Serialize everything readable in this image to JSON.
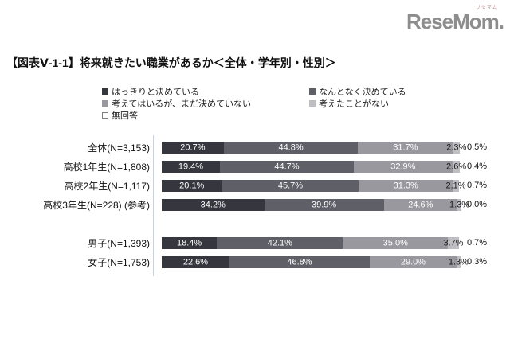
{
  "logo": {
    "text": "ReseMom.",
    "ruby": "リセマム"
  },
  "title": "【図表Ⅴ-1-1】将来就きたい職業があるか＜全体・学年別・性別＞",
  "legend": {
    "items": [
      {
        "label": "はっきりと決めている",
        "color": "#36363e"
      },
      {
        "label": "なんとなく決めている",
        "color": "#5f5f68"
      },
      {
        "label": "考えてはいるが、まだ決めていない",
        "color": "#98989e"
      },
      {
        "label": "考えたことがない",
        "color": "#bfbfc3"
      },
      {
        "label": "無回答",
        "color": "#ffffff",
        "border": "#7f7f7f"
      }
    ]
  },
  "chart_data": {
    "type": "bar",
    "stacked": true,
    "orientation": "horizontal",
    "unit": "%",
    "xlim": [
      0,
      100
    ],
    "grid": false,
    "value_labels": "inside, last series outside right",
    "categories": [
      "全体(N=3,153)",
      "高校1年生(N=1,808)",
      "高校2年生(N=1,117)",
      "高校3年生(N=228) (参考)",
      "男子(N=1,393)",
      "女子(N=1,753)"
    ],
    "series": [
      {
        "name": "はっきりと決めている",
        "values": [
          20.7,
          19.4,
          20.1,
          34.2,
          18.4,
          22.6
        ]
      },
      {
        "name": "なんとなく決めている",
        "values": [
          44.8,
          44.7,
          45.7,
          39.9,
          42.1,
          46.8
        ]
      },
      {
        "name": "考えてはいるが、まだ決めていない",
        "values": [
          31.7,
          32.9,
          31.3,
          24.6,
          35.0,
          29.0
        ]
      },
      {
        "name": "考えたことがない",
        "values": [
          2.3,
          2.6,
          2.1,
          1.3,
          3.7,
          1.3
        ]
      },
      {
        "name": "無回答",
        "values": [
          0.5,
          0.4,
          0.7,
          0.0,
          0.7,
          0.3
        ]
      }
    ],
    "colors": [
      "#36363e",
      "#5f5f68",
      "#98989e",
      "#bfbfc3",
      "#ffffff"
    ],
    "group_gap_after_category_index": 3
  }
}
